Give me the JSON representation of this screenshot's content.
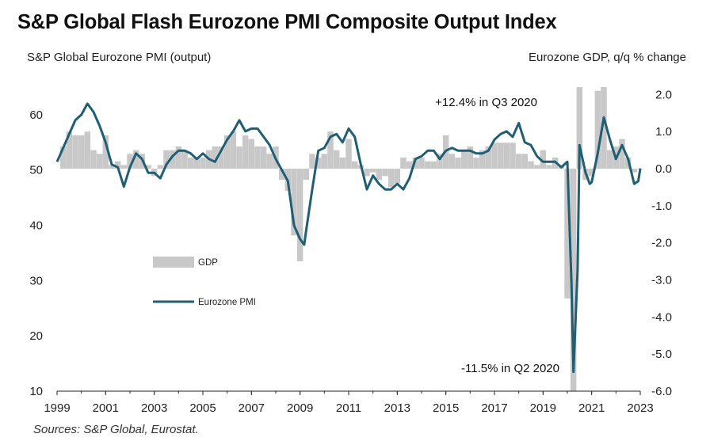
{
  "title": "S&P Global Flash Eurozone PMI Composite Output Index",
  "source": "Sources: S&P Global, Eurostat.",
  "chart_data": {
    "type": "bar",
    "left_axis_label": "S&P Global  Eurozone PMI (output)",
    "right_axis_label": "Eurozone GDP, q/q % change",
    "left_ylim": [
      10,
      65
    ],
    "left_ticks": [
      10,
      20,
      30,
      40,
      50,
      60
    ],
    "right_ylim": [
      -6.0,
      2.2
    ],
    "right_ticks": [
      "2.0",
      "1.0",
      "0.0",
      "-1.0",
      "-2.0",
      "-3.0",
      "-4.0",
      "-5.0",
      "-6.0"
    ],
    "x_ticks": [
      "1999",
      "2001",
      "2003",
      "2005",
      "2007",
      "2009",
      "2011",
      "2013",
      "2015",
      "2017",
      "2019",
      "2021",
      "2023"
    ],
    "x_range": [
      1999.0,
      2023.0
    ],
    "annotations": [
      "+12.4% in Q3 2020",
      "-11.5% in Q2 2020"
    ],
    "legend": [
      "GDP",
      "Eurozone PMI"
    ],
    "colors": {
      "gdp": "#c8c8c8",
      "pmi": "#1f5e73"
    },
    "gdp": {
      "name": "GDP",
      "x": [
        1999.25,
        1999.5,
        1999.75,
        2000.0,
        2000.25,
        2000.5,
        2000.75,
        2001.0,
        2001.25,
        2001.5,
        2001.75,
        2002.0,
        2002.25,
        2002.5,
        2002.75,
        2003.0,
        2003.25,
        2003.5,
        2003.75,
        2004.0,
        2004.25,
        2004.5,
        2004.75,
        2005.0,
        2005.25,
        2005.5,
        2005.75,
        2006.0,
        2006.25,
        2006.5,
        2006.75,
        2007.0,
        2007.25,
        2007.5,
        2007.75,
        2008.0,
        2008.25,
        2008.5,
        2008.75,
        2009.0,
        2009.25,
        2009.5,
        2009.75,
        2010.0,
        2010.25,
        2010.5,
        2010.75,
        2011.0,
        2011.25,
        2011.5,
        2011.75,
        2012.0,
        2012.25,
        2012.5,
        2012.75,
        2013.0,
        2013.25,
        2013.5,
        2013.75,
        2014.0,
        2014.25,
        2014.5,
        2014.75,
        2015.0,
        2015.25,
        2015.5,
        2015.75,
        2016.0,
        2016.25,
        2016.5,
        2016.75,
        2017.0,
        2017.25,
        2017.5,
        2017.75,
        2018.0,
        2018.25,
        2018.5,
        2018.75,
        2019.0,
        2019.25,
        2019.5,
        2019.75,
        2020.0,
        2020.25,
        2020.5,
        2020.75,
        2021.0,
        2021.25,
        2021.5,
        2021.75,
        2022.0,
        2022.25,
        2022.5,
        2022.75,
        2023.0
      ],
      "values": [
        0.6,
        1.0,
        0.9,
        0.9,
        1.0,
        0.5,
        0.4,
        0.9,
        0.1,
        0.2,
        0.1,
        0.4,
        0.5,
        0.4,
        0.1,
        -0.2,
        0.1,
        0.5,
        0.5,
        0.6,
        0.5,
        0.3,
        0.3,
        0.3,
        0.5,
        0.6,
        0.6,
        0.9,
        1.0,
        0.6,
        0.9,
        0.8,
        0.6,
        0.6,
        0.4,
        0.6,
        -0.3,
        -0.6,
        -1.8,
        -2.5,
        -0.3,
        0.4,
        0.3,
        0.4,
        1.0,
        0.5,
        0.3,
        0.8,
        0.2,
        0.1,
        -0.2,
        -0.1,
        -0.3,
        -0.2,
        -0.5,
        -0.4,
        0.3,
        0.2,
        0.3,
        0.3,
        0.2,
        0.2,
        0.4,
        0.9,
        0.4,
        0.3,
        0.5,
        0.6,
        0.3,
        0.5,
        0.6,
        0.7,
        0.7,
        0.7,
        0.7,
        0.4,
        0.4,
        0.2,
        0.1,
        0.5,
        0.1,
        0.3,
        0.1,
        -3.5,
        -11.5,
        12.4,
        -0.3,
        -0.2,
        2.1,
        2.3,
        0.5,
        0.6,
        0.8,
        0.3,
        -0.1,
        0.0
      ],
      "clip_max": 2.2,
      "clip_min": -6.0
    },
    "pmi": {
      "name": "Eurozone PMI",
      "x": [
        1999.0,
        1999.25,
        1999.5,
        1999.75,
        2000.0,
        2000.25,
        2000.5,
        2000.75,
        2001.0,
        2001.25,
        2001.5,
        2001.75,
        2002.0,
        2002.25,
        2002.5,
        2002.75,
        2003.0,
        2003.25,
        2003.5,
        2003.75,
        2004.0,
        2004.25,
        2004.5,
        2004.75,
        2005.0,
        2005.25,
        2005.5,
        2005.75,
        2006.0,
        2006.25,
        2006.5,
        2006.75,
        2007.0,
        2007.25,
        2007.5,
        2007.75,
        2008.0,
        2008.25,
        2008.5,
        2008.75,
        2009.0,
        2009.17,
        2009.25,
        2009.5,
        2009.75,
        2010.0,
        2010.25,
        2010.5,
        2010.75,
        2011.0,
        2011.25,
        2011.5,
        2011.75,
        2012.0,
        2012.25,
        2012.5,
        2012.75,
        2013.0,
        2013.25,
        2013.5,
        2013.75,
        2014.0,
        2014.25,
        2014.5,
        2014.75,
        2015.0,
        2015.25,
        2015.5,
        2015.75,
        2016.0,
        2016.25,
        2016.5,
        2016.75,
        2017.0,
        2017.25,
        2017.5,
        2017.75,
        2018.0,
        2018.25,
        2018.5,
        2018.75,
        2019.0,
        2019.25,
        2019.5,
        2019.75,
        2020.0,
        2020.17,
        2020.25,
        2020.42,
        2020.5,
        2020.75,
        2020.92,
        2021.0,
        2021.25,
        2021.5,
        2021.75,
        2022.0,
        2022.25,
        2022.5,
        2022.75,
        2022.92,
        2023.0
      ],
      "values": [
        51.5,
        54.0,
        56.5,
        59.0,
        60.0,
        62.0,
        60.5,
        58.0,
        55.0,
        51.0,
        50.5,
        47.0,
        50.5,
        53.0,
        52.0,
        49.5,
        49.5,
        48.5,
        51.0,
        52.5,
        53.5,
        53.5,
        53.0,
        52.0,
        53.0,
        52.0,
        51.5,
        53.5,
        55.5,
        57.0,
        59.0,
        57.0,
        57.5,
        57.5,
        56.0,
        54.5,
        52.0,
        50.0,
        48.0,
        40.0,
        37.5,
        36.5,
        39.0,
        46.5,
        53.5,
        54.0,
        56.0,
        56.5,
        55.0,
        57.5,
        56.0,
        51.0,
        46.5,
        49.0,
        47.5,
        46.5,
        46.5,
        47.5,
        46.5,
        48.5,
        52.0,
        52.5,
        53.5,
        53.5,
        52.0,
        53.5,
        54.0,
        53.5,
        53.5,
        53.5,
        53.0,
        53.0,
        53.5,
        55.5,
        56.5,
        57.0,
        56.0,
        58.5,
        55.0,
        54.5,
        52.5,
        51.5,
        51.5,
        51.5,
        50.5,
        51.5,
        29.5,
        13.5,
        31.9,
        54.5,
        49.5,
        47.5,
        47.8,
        53.0,
        59.5,
        55.5,
        52.0,
        54.5,
        52.0,
        47.5,
        48.0,
        50.3
      ]
    }
  }
}
